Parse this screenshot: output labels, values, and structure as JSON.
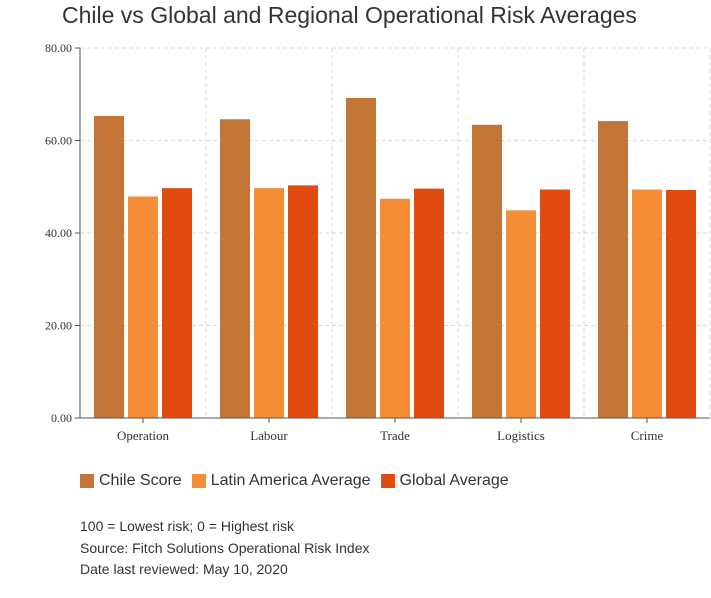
{
  "chart_data": {
    "type": "bar",
    "title": "Chile vs Global and Regional Operational Risk Averages",
    "categories": [
      "Operation",
      "Labour",
      "Trade",
      "Logistics",
      "Crime"
    ],
    "series": [
      {
        "name": "Chile Score",
        "color": "#c47637",
        "values": [
          65.3,
          64.6,
          69.2,
          63.4,
          64.2
        ]
      },
      {
        "name": "Latin America Average",
        "color": "#f48d35",
        "values": [
          47.9,
          49.7,
          47.4,
          44.9,
          49.4
        ]
      },
      {
        "name": "Global Average",
        "color": "#e14b0f",
        "values": [
          49.7,
          50.3,
          49.6,
          49.4,
          49.3
        ]
      }
    ],
    "ylim": [
      0,
      80
    ],
    "yticks": [
      "0.00",
      "20.00",
      "40.00",
      "60.00",
      "80.00"
    ],
    "grid": true,
    "legend_position": "bottom-left"
  },
  "notes": [
    "100 = Lowest risk; 0 = Highest risk",
    "Source: Fitch Solutions Operational Risk Index",
    "Date last reviewed: May 10, 2020"
  ]
}
